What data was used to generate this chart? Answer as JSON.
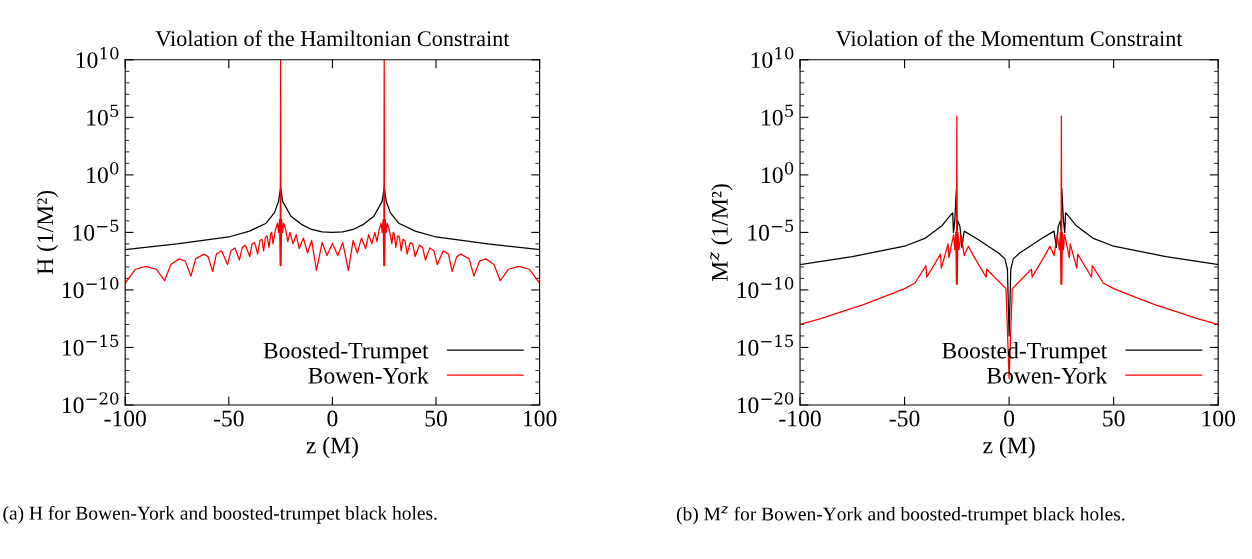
{
  "chart_data": [
    {
      "type": "line",
      "title": "Violation of the Hamiltonian Constraint",
      "xlabel": "z (M)",
      "ylabel": "H (1/M²)",
      "log": "y",
      "legend": "bottom right",
      "grid": false,
      "xlim": [
        -100,
        100
      ],
      "xticks": [
        -100,
        -50,
        0,
        50,
        100
      ],
      "ylim": [
        1e-20,
        10000000000.0
      ],
      "yticks": [
        {
          "value": 1e-20,
          "label": "10$^{−20}$"
        },
        {
          "value": 1e-19,
          "label": null
        },
        {
          "value": 1e-18,
          "label": null
        },
        {
          "value": 1e-17,
          "label": null
        },
        {
          "value": 1e-16,
          "label": null
        },
        {
          "value": 1e-15,
          "label": "10$^{−15}$"
        },
        {
          "value": 1e-14,
          "label": null
        },
        {
          "value": 1e-13,
          "label": null
        },
        {
          "value": 1e-12,
          "label": null
        },
        {
          "value": 1e-11,
          "label": null
        },
        {
          "value": 1e-10,
          "label": "10$^{−10}$"
        },
        {
          "value": 1e-09,
          "label": null
        },
        {
          "value": 1e-08,
          "label": null
        },
        {
          "value": 1e-07,
          "label": null
        },
        {
          "value": 1e-06,
          "label": null
        },
        {
          "value": 1e-05,
          "label": "10$^{−5}$"
        },
        {
          "value": 0.0001,
          "label": null
        },
        {
          "value": 0.001,
          "label": null
        },
        {
          "value": 0.01,
          "label": null
        },
        {
          "value": 0.1,
          "label": null
        },
        {
          "value": 1,
          "label": "10$^{0}$"
        },
        {
          "value": 10,
          "label": null
        },
        {
          "value": 100,
          "label": null
        },
        {
          "value": 1000,
          "label": null
        },
        {
          "value": 10000,
          "label": null
        },
        {
          "value": 100000,
          "label": "10$^{5}$"
        },
        {
          "value": 1000000.0,
          "label": null
        },
        {
          "value": 10000000.0,
          "label": null
        },
        {
          "value": 100000000.0,
          "label": null
        },
        {
          "value": 1000000000.0,
          "label": null
        },
        {
          "value": 10000000000.0,
          "label": "10$^{10}$"
        }
      ],
      "annotations": [
        "(a) H for Bowen-York and boosted-trumpet black holes."
      ],
      "series": [
        {
          "name": "Boosted-Trumpet",
          "color": "#000000",
          "x": [
            -100,
            -75,
            -50,
            -40,
            -32,
            -28,
            -26,
            -25,
            -24,
            -20,
            -15,
            -10,
            -5,
            0,
            5,
            10,
            15,
            20,
            24,
            25,
            26,
            28,
            32,
            40,
            50,
            75,
            100
          ],
          "values": [
            3.2e-07,
            1e-06,
            4e-06,
            1.3e-05,
            6.3e-05,
            0.0005,
            0.005,
            0.079,
            0.005,
            0.00025,
            5e-05,
            1.8e-05,
            1.1e-05,
            1e-05,
            1.1e-05,
            1.8e-05,
            5e-05,
            0.00025,
            0.005,
            0.079,
            0.005,
            0.0005,
            6.3e-05,
            1.3e-05,
            4e-06,
            1e-06,
            3.2e-07
          ]
        },
        {
          "name": "Bowen-York",
          "color": "#ff0000",
          "x": [
            -100,
            -95,
            -90,
            -85,
            -81,
            -78,
            -74,
            -71,
            -68.3,
            -66,
            -62,
            -60,
            -57.8,
            -56,
            -53.5,
            -50.6,
            -49,
            -47,
            -44.9,
            -43.5,
            -42,
            -39.9,
            -38.8,
            -37.5,
            -36.1,
            -35,
            -34,
            -33.2,
            -32.3,
            -31.5,
            -30.6,
            -29.8,
            -29.3,
            -28.7,
            -27.5,
            -26.5,
            -26,
            -25.5,
            -25.2,
            -25,
            -24.8,
            -24.5,
            -24,
            -23.5,
            -22.5,
            -21.5,
            -20.5,
            -19,
            -17.5,
            -16,
            -14,
            -12,
            -10,
            -7.7,
            -5,
            -2.6,
            0,
            2.6,
            5,
            7.7,
            10,
            12,
            14,
            16,
            17.5,
            19,
            20.5,
            21.5,
            22.5,
            23.5,
            24,
            24.5,
            24.8,
            25,
            25.2,
            25.5,
            26,
            26.5,
            27.5,
            28.7,
            29.3,
            29.8,
            30.6,
            31.5,
            32.3,
            33.2,
            34,
            35,
            36.1,
            37.5,
            38.8,
            39.9,
            42,
            43.5,
            44.9,
            47,
            49,
            50.6,
            53.5,
            56,
            57.8,
            60,
            62,
            66,
            68.3,
            71,
            74,
            78,
            81,
            85,
            90,
            95,
            100
          ],
          "values": [
            4e-10,
            6.3e-09,
            1.1e-08,
            6.3e-09,
            6.3e-10,
            1.6e-08,
            5e-08,
            3.2e-08,
            1.6e-09,
            5e-08,
            1.3e-07,
            7.9e-08,
            4e-09,
            1.3e-07,
            2.5e-07,
            1.6e-08,
            2.5e-07,
            4.5e-07,
            4e-08,
            5e-07,
            7.9e-07,
            7.9e-08,
            1e-06,
            1.3e-06,
            1.3e-07,
            2e-06,
            2.5e-06,
            2.5e-07,
            4e-06,
            5e-06,
            5e-07,
            7.9e-06,
            1e-05,
            1e-06,
            1.6e-05,
            6.3e-05,
            1e-05,
            0.00013,
            1.3e-08,
            10000000000.0,
            1.3e-08,
            0.00013,
            1e-05,
            6.3e-05,
            1.6e-05,
            1.6e-06,
            1e-05,
            1e-06,
            6.3e-06,
            4e-07,
            3.2e-06,
            1.6e-07,
            2e-06,
            5e-09,
            1.3e-06,
            1e-07,
            1.1e-06,
            1e-07,
            1.3e-06,
            5e-09,
            2e-06,
            1.6e-07,
            3.2e-06,
            4e-07,
            6.3e-06,
            1e-06,
            1e-05,
            1.6e-06,
            1.6e-05,
            6.3e-05,
            1e-05,
            0.00013,
            1.3e-08,
            10000000000.0,
            1.3e-08,
            0.00013,
            1e-05,
            6.3e-05,
            1.6e-05,
            1e-06,
            1e-05,
            7.9e-06,
            5e-07,
            5e-06,
            4e-06,
            2.5e-07,
            2.5e-06,
            2e-06,
            1.3e-07,
            1.3e-06,
            1e-06,
            7.9e-08,
            7.9e-07,
            5e-07,
            4e-08,
            4.5e-07,
            2.5e-07,
            1.6e-08,
            2.5e-07,
            1.3e-07,
            4e-09,
            7.9e-08,
            1.3e-07,
            5e-08,
            1.6e-09,
            3.2e-08,
            5e-08,
            1.6e-08,
            6.3e-10,
            6.3e-09,
            1.1e-08,
            6.3e-09,
            4e-10
          ]
        }
      ]
    },
    {
      "type": "line",
      "title": "Violation of the Momentum Constraint",
      "xlabel": "z (M)",
      "ylabel": "M$^{z}$ (1/M²)",
      "log": "y",
      "legend": "bottom right",
      "grid": false,
      "xlim": [
        -100,
        100
      ],
      "xticks": [
        -100,
        -50,
        0,
        50,
        100
      ],
      "ylim": [
        1e-20,
        10000000000.0
      ],
      "yticks": [
        {
          "value": 1e-20,
          "label": "10$^{−20}$"
        },
        {
          "value": 1e-19,
          "label": null
        },
        {
          "value": 1e-18,
          "label": null
        },
        {
          "value": 1e-17,
          "label": null
        },
        {
          "value": 1e-16,
          "label": null
        },
        {
          "value": 1e-15,
          "label": "10$^{−15}$"
        },
        {
          "value": 1e-14,
          "label": null
        },
        {
          "value": 1e-13,
          "label": null
        },
        {
          "value": 1e-12,
          "label": null
        },
        {
          "value": 1e-11,
          "label": null
        },
        {
          "value": 1e-10,
          "label": "10$^{−10}$"
        },
        {
          "value": 1e-09,
          "label": null
        },
        {
          "value": 1e-08,
          "label": null
        },
        {
          "value": 1e-07,
          "label": null
        },
        {
          "value": 1e-06,
          "label": null
        },
        {
          "value": 1e-05,
          "label": "10$^{−5}$"
        },
        {
          "value": 0.0001,
          "label": null
        },
        {
          "value": 0.001,
          "label": null
        },
        {
          "value": 0.01,
          "label": null
        },
        {
          "value": 0.1,
          "label": null
        },
        {
          "value": 1,
          "label": "10$^{0}$"
        },
        {
          "value": 10,
          "label": null
        },
        {
          "value": 100,
          "label": null
        },
        {
          "value": 1000,
          "label": null
        },
        {
          "value": 10000,
          "label": null
        },
        {
          "value": 100000,
          "label": "10$^{5}$"
        },
        {
          "value": 1000000.0,
          "label": null
        },
        {
          "value": 10000000.0,
          "label": null
        },
        {
          "value": 100000000.0,
          "label": null
        },
        {
          "value": 1000000000.0,
          "label": null
        },
        {
          "value": 10000000000.0,
          "label": "10$^{10}$"
        }
      ],
      "annotations": [
        "(b) M$^{z}$ for Bowen-York and boosted-trumpet black holes."
      ],
      "series": [
        {
          "name": "Boosted-Trumpet",
          "color": "#000000",
          "x": [
            -100,
            -75,
            -50,
            -40,
            -32,
            -28.5,
            -27,
            -26.6,
            -26,
            -25.2,
            -25,
            -24.5,
            -23.5,
            -22.6,
            -21.5,
            -15,
            -10,
            -5,
            -2,
            -0.8,
            0,
            0.8,
            2,
            5,
            10,
            15,
            21.5,
            22.6,
            23.5,
            24.5,
            25,
            25.2,
            26,
            26.6,
            27,
            28.5,
            32,
            40,
            50,
            75,
            100
          ],
          "values": [
            1.6e-08,
            7.9e-08,
            6.3e-07,
            3.2e-06,
            4e-05,
            0.00025,
            0.0005,
            1e-05,
            0.0001,
            0.063,
            1e-05,
            0.0001,
            3.2e-05,
            5e-07,
            1.3e-05,
            2.5e-06,
            6.3e-07,
            1.6e-07,
            5e-08,
            6.3e-09,
            1e-14,
            6.3e-09,
            5e-08,
            1.6e-07,
            6.3e-07,
            2.5e-06,
            1.3e-05,
            5e-07,
            3.2e-05,
            0.0001,
            1e-05,
            0.063,
            0.0001,
            1e-05,
            0.0005,
            0.00025,
            4e-05,
            3.2e-06,
            6.3e-07,
            7.9e-08,
            1.6e-08
          ]
        },
        {
          "name": "Bowen-York",
          "color": "#ff0000",
          "x": [
            -100,
            -90,
            -80,
            -70,
            -60,
            -50,
            -45,
            -39.8,
            -39.4,
            -32.8,
            -32.4,
            -29.2,
            -28.8,
            -27.5,
            -26.5,
            -26,
            -25.5,
            -25.2,
            -25,
            -24.8,
            -24.5,
            -24,
            -23,
            -21.5,
            -19.5,
            -17.5,
            -11,
            -10.7,
            -1.5,
            0,
            1.5,
            10.7,
            11,
            17.5,
            19.5,
            21.5,
            23,
            24,
            24.5,
            24.8,
            25,
            25.2,
            25.5,
            26,
            26.5,
            27.5,
            28.8,
            29.2,
            32.4,
            32.8,
            39.4,
            39.8,
            45,
            50,
            60,
            70,
            80,
            90,
            100
          ],
          "values": [
            1e-13,
            3.2e-13,
            1.3e-12,
            5e-12,
            2.5e-11,
            1.3e-10,
            4e-10,
            1.3e-08,
            1.3e-09,
            1.3e-07,
            7.9e-09,
            1e-06,
            6.3e-08,
            1e-06,
            6.3e-06,
            3.2e-07,
            1e-05,
            3.2e-10,
            130000.0,
            3.2e-10,
            1e-05,
            3.2e-07,
            6.3e-06,
            1e-07,
            6.3e-07,
            1.3e-07,
            1.3e-09,
            6.3e-09,
            1.3e-10,
            2e-18,
            1.3e-10,
            6.3e-09,
            1.3e-09,
            1.3e-07,
            6.3e-07,
            1e-07,
            6.3e-06,
            3.2e-07,
            1e-05,
            3.2e-10,
            130000.0,
            3.2e-10,
            1e-05,
            3.2e-07,
            6.3e-06,
            1e-06,
            6.3e-08,
            1e-06,
            7.9e-09,
            1.3e-07,
            1.3e-09,
            1.3e-08,
            4e-10,
            1.3e-10,
            2.5e-11,
            5e-12,
            1.3e-12,
            3.2e-13,
            1e-13
          ]
        }
      ]
    }
  ]
}
